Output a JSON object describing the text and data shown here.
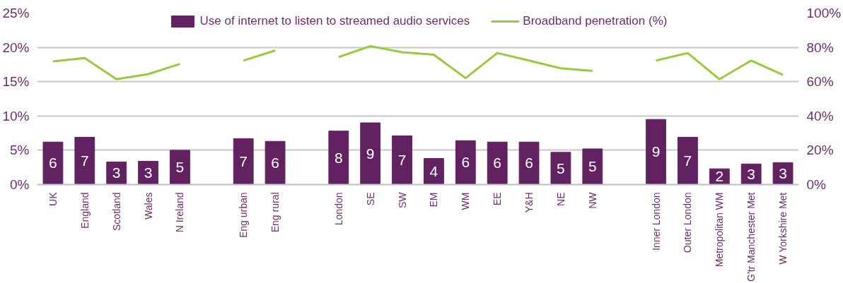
{
  "chart_data": {
    "type": "bar",
    "categories": [
      "UK",
      "England",
      "Scotland",
      "Wales",
      "N Ireland",
      null,
      "Eng urban",
      "Eng rural",
      null,
      "London",
      "SE",
      "SW",
      "EM",
      "WM",
      "EE",
      "Y&H",
      "NE",
      "NW",
      null,
      "Inner London",
      "Outer London",
      "Metropolitan WM",
      "G'tr Manchester Met",
      "W Yorkshire Met"
    ],
    "series": [
      {
        "name": "Use of internet to listen to streamed audio services",
        "color": "#622262",
        "values": [
          6.2,
          6.9,
          3.3,
          3.4,
          5.0,
          null,
          6.7,
          6.3,
          null,
          7.8,
          9.0,
          7.1,
          3.8,
          6.4,
          6.2,
          6.2,
          4.7,
          5.2,
          null,
          9.5,
          6.9,
          2.3,
          3.0,
          3.2
        ],
        "value_labels": [
          "6",
          "7",
          "3",
          "3",
          "5",
          null,
          "7",
          "6",
          null,
          "8",
          "9",
          "7",
          "4",
          "6",
          "6",
          "6",
          "5",
          "5",
          null,
          "9",
          "7",
          "2",
          "3",
          "3"
        ]
      },
      {
        "name": "Broadband penetration (%)",
        "type": "line",
        "axis": "y2",
        "color": "#9bc93c",
        "values": [
          71.8,
          73.8,
          61.4,
          64.4,
          70.3,
          null,
          72.3,
          78.2,
          null,
          74.3,
          80.7,
          77.2,
          75.7,
          62.1,
          76.7,
          72.3,
          67.8,
          66.3,
          null,
          72.3,
          76.7,
          61.4,
          72.3,
          63.9
        ]
      }
    ],
    "ylim": [
      0,
      25
    ],
    "yticks": [
      {
        "value": 0,
        "label": "0%"
      },
      {
        "value": 5,
        "label": "5%"
      },
      {
        "value": 10,
        "label": "10%"
      },
      {
        "value": 15,
        "label": "15%"
      },
      {
        "value": 20,
        "label": "20%"
      },
      {
        "value": 25,
        "label": "25%"
      }
    ],
    "y2lim": [
      0,
      100
    ],
    "y2ticks": [
      {
        "value": 0,
        "label": "0%"
      },
      {
        "value": 20,
        "label": "20%"
      },
      {
        "value": 40,
        "label": "40%"
      },
      {
        "value": 60,
        "label": "60%"
      },
      {
        "value": 80,
        "label": "80%"
      },
      {
        "value": 100,
        "label": "100%"
      }
    ],
    "grid": "y",
    "legend": "top",
    "marker": "none",
    "line_style": "solid"
  }
}
